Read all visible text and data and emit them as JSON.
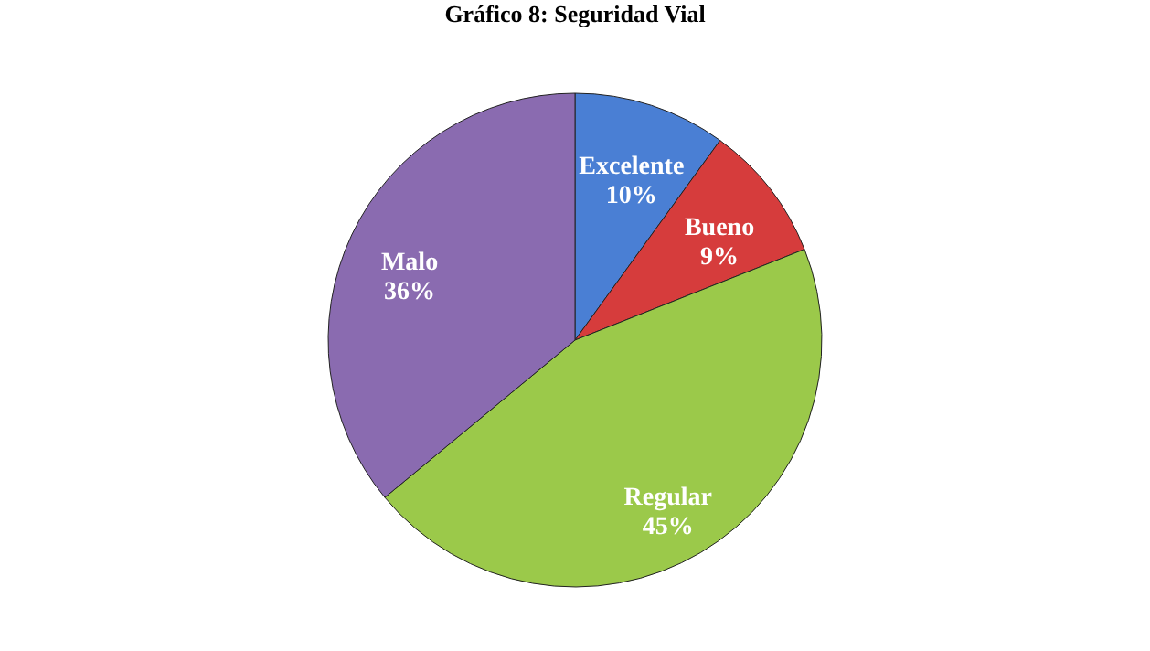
{
  "chart_data": {
    "type": "pie",
    "title": "Gráfico 8: Seguridad Vial",
    "categories": [
      "Excelente",
      "Bueno",
      "Regular",
      "Malo"
    ],
    "values": [
      10,
      9,
      45,
      36
    ],
    "colors": [
      "#4a7fd4",
      "#d63c3c",
      "#9bc94a",
      "#8a6bb0"
    ],
    "value_labels": [
      "10%",
      "9%",
      "45%",
      "36%"
    ]
  }
}
